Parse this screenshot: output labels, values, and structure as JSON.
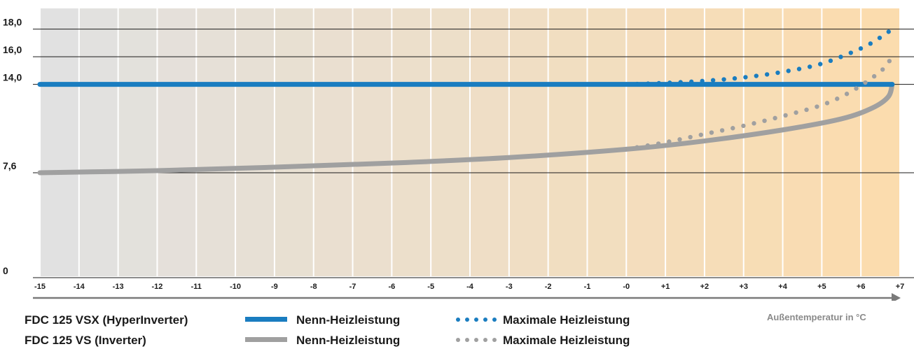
{
  "chart_data": {
    "type": "line",
    "xlabel": "Außentemperatur in °C",
    "ylabel": "",
    "ylim": [
      0,
      19.5
    ],
    "xlim": [
      -15,
      7
    ],
    "y_ticks": [
      {
        "value": 0,
        "label": "0"
      },
      {
        "value": 7.6,
        "label": "7,6"
      },
      {
        "value": 14.0,
        "label": "14,0"
      },
      {
        "value": 16.0,
        "label": "16,0"
      },
      {
        "value": 18.0,
        "label": "18,0"
      }
    ],
    "x_ticks": [
      {
        "value": -15,
        "label": "-15"
      },
      {
        "value": -14,
        "label": "-14"
      },
      {
        "value": -13,
        "label": "-13"
      },
      {
        "value": -12,
        "label": "-12"
      },
      {
        "value": -11,
        "label": "-11"
      },
      {
        "value": -10,
        "label": "-10"
      },
      {
        "value": -9,
        "label": "-9"
      },
      {
        "value": -8,
        "label": "-8"
      },
      {
        "value": -7,
        "label": "-7"
      },
      {
        "value": -6,
        "label": "-6"
      },
      {
        "value": -5,
        "label": "-5"
      },
      {
        "value": -4,
        "label": "-4"
      },
      {
        "value": -3,
        "label": "-3"
      },
      {
        "value": -2,
        "label": "-2"
      },
      {
        "value": -1,
        "label": "-1"
      },
      {
        "value": 0,
        "label": "-0"
      },
      {
        "value": 1,
        "label": "+1"
      },
      {
        "value": 2,
        "label": "+2"
      },
      {
        "value": 3,
        "label": "+3"
      },
      {
        "value": 4,
        "label": "+4"
      },
      {
        "value": 5,
        "label": "+5"
      },
      {
        "value": 6,
        "label": "+6"
      },
      {
        "value": 7,
        "label": "+7"
      }
    ],
    "grid": "horizontal",
    "series": [
      {
        "name": "Nenn-Heizleistung",
        "model": "FDC 125 VSX (HyperInverter)",
        "style": "solid",
        "color": "#1a7dc0",
        "x": [
          -15,
          6.8
        ],
        "y": [
          14.0,
          14.0
        ]
      },
      {
        "name": "Maximale Heizleistung",
        "model": "FDC 125 VSX (HyperInverter)",
        "style": "dotted",
        "color": "#1a7dc0",
        "x": [
          0,
          1,
          2,
          3,
          4,
          5,
          6,
          6.5,
          6.8
        ],
        "y": [
          14.0,
          14.1,
          14.25,
          14.5,
          14.9,
          15.5,
          16.6,
          17.4,
          18.0
        ]
      },
      {
        "name": "Nenn-Heizleistung",
        "model": "FDC 125 VS (Inverter)",
        "style": "solid",
        "color": "#a0a0a0",
        "x": [
          -15,
          -12,
          -9,
          -6,
          -3,
          0,
          2,
          4,
          5.5,
          6.3,
          6.7,
          6.8
        ],
        "y": [
          7.6,
          7.75,
          8.0,
          8.3,
          8.7,
          9.3,
          9.9,
          10.7,
          11.5,
          12.3,
          13.1,
          14.0
        ]
      },
      {
        "name": "Maximale Heizleistung",
        "model": "FDC 125 VS (Inverter)",
        "style": "dotted",
        "color": "#a0a0a0",
        "x": [
          0,
          1,
          2,
          3,
          4,
          5,
          5.7,
          6.3,
          6.6,
          6.8
        ],
        "y": [
          9.3,
          9.8,
          10.4,
          11.0,
          11.7,
          12.5,
          13.4,
          14.5,
          15.2,
          16.0
        ]
      }
    ]
  },
  "legend": {
    "rows": [
      {
        "model": "FDC 125 VSX (HyperInverter)",
        "solid_label": "Nenn-Heizleistung",
        "dotted_label": "Maximale Heizleistung",
        "color": "#1a7dc0"
      },
      {
        "model": "FDC 125 VS (Inverter)",
        "solid_label": "Nenn-Heizleistung",
        "dotted_label": "Maximale Heizleistung",
        "color": "#a0a0a0"
      }
    ]
  },
  "colors": {
    "column_cold": "#e1e1e1",
    "column_warm": "#fbdcae",
    "gridline": "#1a1a1a",
    "axis_arrow": "#7a7a7a"
  }
}
